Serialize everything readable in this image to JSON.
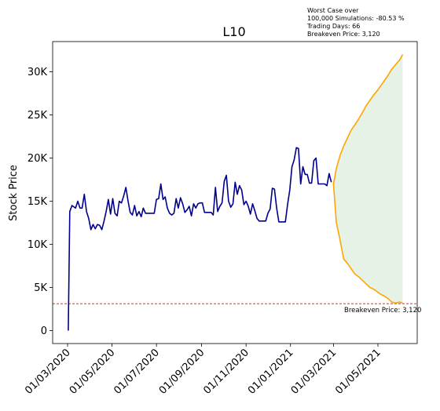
{
  "chart_data": {
    "type": "line",
    "title": "L10",
    "ylabel": "Stock Price",
    "xlabel": "",
    "ylim": [
      -1500,
      33500
    ],
    "yticks": [
      {
        "value": 0,
        "label": "0"
      },
      {
        "value": 5000,
        "label": "5K"
      },
      {
        "value": 10000,
        "label": "10K"
      },
      {
        "value": 15000,
        "label": "15K"
      },
      {
        "value": 20000,
        "label": "20K"
      },
      {
        "value": 25000,
        "label": "25K"
      },
      {
        "value": 30000,
        "label": "30K"
      }
    ],
    "xticks": [
      "01/03/2020",
      "01/05/2020",
      "01/07/2020",
      "01/09/2020",
      "01/11/2020",
      "01/01/2021",
      "01/03/2021",
      "01/05/2021"
    ],
    "annotation_lines": [
      "Worst Case over",
      "100,000 Simulations: -80.53 %",
      "Trading Days: 66",
      "Breakeven Price: 3,120"
    ],
    "breakeven": {
      "value": 3120,
      "label": "Breakeven Price: 3,120",
      "color": "#ff0000"
    },
    "colors": {
      "history": "#00008b",
      "simulation": "#ffa500",
      "band": "#e5f2e5"
    },
    "history": {
      "x": [
        "2020-03-02",
        "2020-03-04",
        "2020-03-07",
        "2020-03-12",
        "2020-03-15",
        "2020-03-18",
        "2020-03-21",
        "2020-03-24",
        "2020-03-27",
        "2020-03-30",
        "2020-04-02",
        "2020-04-05",
        "2020-04-08",
        "2020-04-11",
        "2020-04-14",
        "2020-04-17",
        "2020-04-20",
        "2020-04-23",
        "2020-04-26",
        "2020-04-29",
        "2020-05-02",
        "2020-05-05",
        "2020-05-08",
        "2020-05-11",
        "2020-05-14",
        "2020-05-17",
        "2020-05-20",
        "2020-05-23",
        "2020-05-26",
        "2020-05-29",
        "2020-06-01",
        "2020-06-04",
        "2020-06-07",
        "2020-06-10",
        "2020-06-13",
        "2020-06-16",
        "2020-06-19",
        "2020-06-22",
        "2020-06-25",
        "2020-06-28",
        "2020-07-01",
        "2020-07-04",
        "2020-07-07",
        "2020-07-10",
        "2020-07-13",
        "2020-07-16",
        "2020-07-19",
        "2020-07-22",
        "2020-07-25",
        "2020-07-28",
        "2020-07-31",
        "2020-08-03",
        "2020-08-06",
        "2020-08-09",
        "2020-08-12",
        "2020-08-15",
        "2020-08-18",
        "2020-08-21",
        "2020-08-24",
        "2020-08-27",
        "2020-08-30",
        "2020-09-02",
        "2020-09-05",
        "2020-09-08",
        "2020-09-11",
        "2020-09-14",
        "2020-09-17",
        "2020-09-20",
        "2020-09-23",
        "2020-09-26",
        "2020-09-29",
        "2020-10-02",
        "2020-10-05",
        "2020-10-08",
        "2020-10-11",
        "2020-10-14",
        "2020-10-17",
        "2020-10-20",
        "2020-10-23",
        "2020-10-26",
        "2020-10-29",
        "2020-11-01",
        "2020-11-04",
        "2020-11-07",
        "2020-11-10",
        "2020-11-13",
        "2020-11-16",
        "2020-11-19",
        "2020-11-22",
        "2020-11-25",
        "2020-11-28",
        "2020-12-01",
        "2020-12-04",
        "2020-12-07",
        "2020-12-10",
        "2020-12-13",
        "2020-12-16",
        "2020-12-19",
        "2020-12-22",
        "2020-12-25",
        "2020-12-28",
        "2020-12-31",
        "2021-01-03",
        "2021-01-06",
        "2021-01-09",
        "2021-01-12",
        "2021-01-15",
        "2021-01-18",
        "2021-01-21",
        "2021-01-24",
        "2021-01-27",
        "2021-01-30",
        "2021-02-02",
        "2021-02-05",
        "2021-02-08",
        "2021-02-11",
        "2021-02-14",
        "2021-02-17",
        "2021-02-20",
        "2021-02-23",
        "2021-02-26"
      ],
      "y": [
        0,
        13800,
        14500,
        14200,
        15000,
        14200,
        14200,
        15800,
        13800,
        13000,
        11700,
        12300,
        11800,
        12300,
        12200,
        11700,
        12700,
        13800,
        15200,
        13500,
        15300,
        13600,
        13300,
        15000,
        14800,
        15600,
        16600,
        15000,
        13700,
        13400,
        14500,
        13300,
        13800,
        13200,
        14200,
        13600,
        13600,
        13600,
        13600,
        13600,
        15200,
        15300,
        17000,
        15200,
        15500,
        14200,
        13600,
        13400,
        13600,
        15300,
        14200,
        15400,
        14700,
        13700,
        14000,
        14400,
        13300,
        14700,
        14200,
        14700,
        14800,
        14800,
        13700,
        13700,
        13700,
        13700,
        13400,
        16600,
        13800,
        14400,
        14800,
        17300,
        18000,
        15000,
        14300,
        14700,
        17200,
        15800,
        16800,
        16300,
        14600,
        15000,
        14400,
        13500,
        14700,
        13900,
        13000,
        12700,
        12700,
        12700,
        12700,
        13600,
        14100,
        16500,
        16400,
        14200,
        12600,
        12600,
        12600,
        12600,
        14600,
        16300,
        19000,
        19800,
        21200,
        21100,
        17000,
        19000,
        18100,
        18100,
        17100,
        17100,
        19700,
        20000,
        17000,
        17000,
        17000,
        17000,
        16800,
        18200,
        17200
      ]
    },
    "simulation_upper": {
      "x": [
        "2021-03-01",
        "2021-03-05",
        "2021-03-10",
        "2021-03-15",
        "2021-03-20",
        "2021-03-25",
        "2021-03-30",
        "2021-04-05",
        "2021-04-10",
        "2021-04-15",
        "2021-04-20",
        "2021-04-25",
        "2021-04-30",
        "2021-05-05",
        "2021-05-10",
        "2021-05-15",
        "2021-05-20",
        "2021-05-25",
        "2021-05-31",
        "2021-06-04"
      ],
      "y": [
        17000,
        18800,
        20300,
        21400,
        22300,
        23200,
        23800,
        24600,
        25300,
        26100,
        26700,
        27300,
        27800,
        28400,
        29000,
        29600,
        30300,
        30800,
        31400,
        32000
      ]
    },
    "simulation_lower": {
      "x": [
        "2021-03-01",
        "2021-03-05",
        "2021-03-10",
        "2021-03-15",
        "2021-03-20",
        "2021-03-25",
        "2021-03-30",
        "2021-04-05",
        "2021-04-10",
        "2021-04-15",
        "2021-04-20",
        "2021-04-25",
        "2021-04-30",
        "2021-05-05",
        "2021-05-10",
        "2021-05-15",
        "2021-05-20",
        "2021-05-25",
        "2021-05-31",
        "2021-06-04"
      ],
      "y": [
        17000,
        12500,
        10500,
        8300,
        7800,
        7200,
        6600,
        6200,
        5800,
        5400,
        5000,
        4800,
        4500,
        4200,
        4000,
        3700,
        3300,
        3200,
        3300,
        3200
      ]
    }
  }
}
